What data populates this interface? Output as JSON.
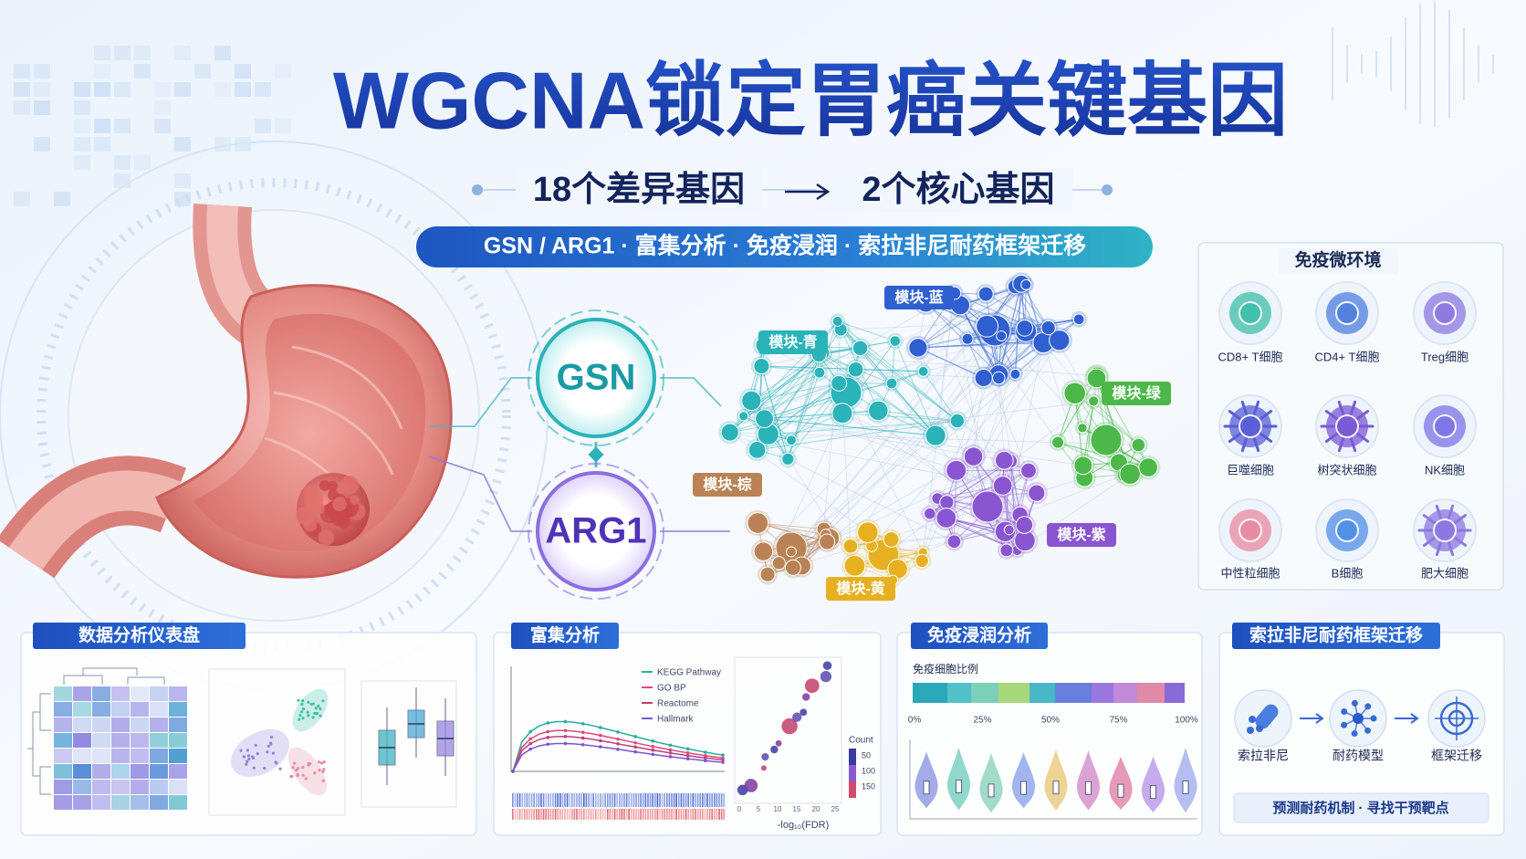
{
  "header": {
    "title": "WGCNA锁定胃癌关键基因",
    "from": "18个差异基因",
    "to": "2个核心基因",
    "tagline": "GSN / ARG1 · 富集分析 · 免疫浸润 · 索拉非尼耐药框架迁移"
  },
  "hub_genes": [
    "GSN",
    "ARG1"
  ],
  "modules": [
    "模块-青",
    "模块-蓝",
    "模块-绿",
    "模块-棕",
    "模块-紫",
    "模块-黄"
  ],
  "immune_microenvironment": {
    "title": "免疫微环境",
    "cells": [
      "CD8+ T细胞",
      "CD4+ T细胞",
      "Treg细胞",
      "巨噬细胞",
      "树突状细胞",
      "NK细胞",
      "中性粒细胞",
      "B细胞",
      "肥大细胞"
    ]
  },
  "panels": {
    "dashboard": {
      "title": "数据分析仪表盘"
    },
    "enrichment": {
      "title": "富集分析",
      "legend": [
        "KEGG Pathway",
        "GO BP",
        "Reactome",
        "Hallmark"
      ],
      "size_legend_title": "Count",
      "size_legend": [
        "50",
        "100",
        "150"
      ],
      "x_ticks": [
        "0",
        "5",
        "10",
        "15",
        "20",
        "25"
      ],
      "x_label": "-log₁₀(FDR)"
    },
    "immune_infiltration": {
      "title": "免疫浸润分析",
      "bar_label": "免疫细胞比例",
      "ticks": [
        "0%",
        "25%",
        "50%",
        "75%",
        "100%"
      ]
    },
    "sorafenib": {
      "title": "索拉非尼耐药框架迁移",
      "steps": [
        "索拉非尼",
        "耐药模型",
        "框架迁移"
      ],
      "footer": "预测耐药机制 · 寻找干预靶点"
    }
  }
}
